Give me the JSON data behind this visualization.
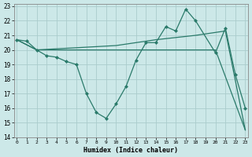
{
  "xlabel": "Humidex (Indice chaleur)",
  "bg_color": "#cce8e8",
  "grid_color": "#aacccc",
  "line_color": "#2a7a6a",
  "xlim": [
    0,
    23
  ],
  "ylim": [
    14,
    23
  ],
  "yticks": [
    14,
    15,
    16,
    17,
    18,
    19,
    20,
    21,
    22,
    23
  ],
  "xticks": [
    0,
    1,
    2,
    3,
    4,
    5,
    6,
    7,
    8,
    9,
    10,
    11,
    12,
    13,
    14,
    15,
    16,
    17,
    18,
    19,
    20,
    21,
    22,
    23
  ],
  "line1_x": [
    0,
    1,
    2,
    3,
    4,
    5,
    6,
    7,
    8,
    9,
    10,
    11,
    12,
    13,
    14,
    15,
    16,
    17,
    18,
    20,
    21,
    22,
    23
  ],
  "line1_y": [
    20.7,
    20.6,
    20.0,
    19.6,
    19.5,
    19.2,
    19.0,
    17.0,
    15.7,
    15.3,
    16.3,
    17.5,
    19.3,
    20.5,
    20.5,
    21.6,
    21.3,
    22.8,
    22.0,
    19.8,
    21.5,
    18.3,
    16.0
  ],
  "line2_x": [
    0,
    2,
    3,
    19,
    20,
    23
  ],
  "line2_y": [
    20.7,
    20.0,
    20.0,
    20.0,
    20.0,
    14.5
  ],
  "line3_x": [
    0,
    2,
    10,
    14,
    18,
    21,
    23
  ],
  "line3_y": [
    20.7,
    20.0,
    20.3,
    20.7,
    21.0,
    21.3,
    14.5
  ]
}
